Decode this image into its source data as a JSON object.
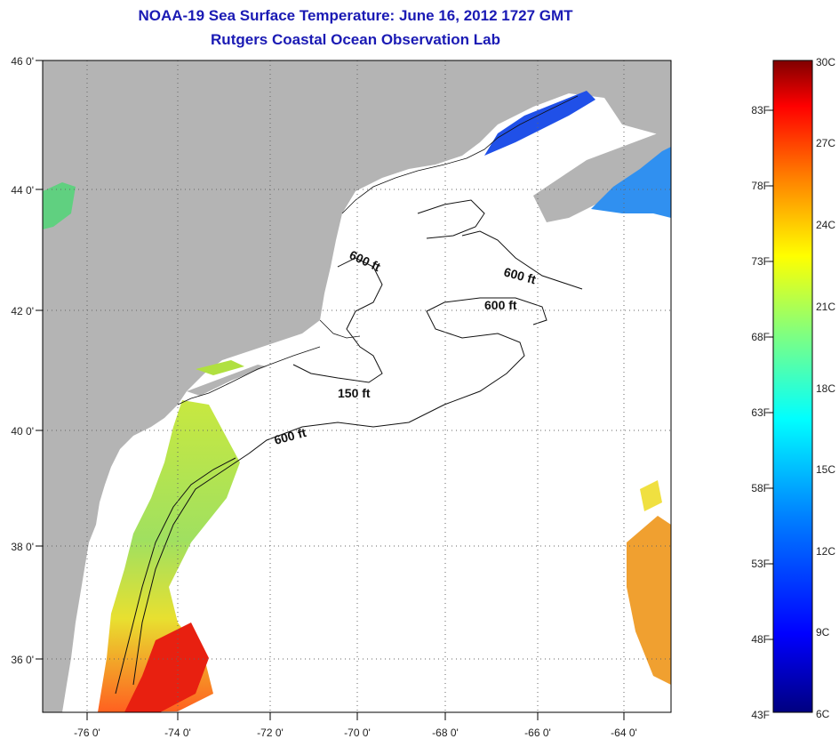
{
  "title": {
    "line1": "NOAA-19 Sea Surface Temperature:  June 16, 2012 1727 GMT",
    "line2": "Rutgers Coastal Ocean Observation Lab"
  },
  "map": {
    "lat_labels": [
      "46 0'",
      "44 0'",
      "42 0'",
      "40 0'",
      "38 0'",
      "36 0'"
    ],
    "lon_labels": [
      "-76 0'",
      "-74 0'",
      "-72 0'",
      "-70 0'",
      "-68 0'",
      "-66 0'",
      "-64 0'"
    ],
    "contour_labels": [
      "600 ft",
      "600 ft",
      "600 ft",
      "150 ft",
      "600 ft"
    ],
    "colors": {
      "land": "#b4b4b4",
      "ocean": "#ffffff"
    }
  },
  "colorbar": {
    "fahrenheit": [
      "83F",
      "78F",
      "73F",
      "68F",
      "63F",
      "58F",
      "53F",
      "48F",
      "43F"
    ],
    "celsius": [
      "30C",
      "27C",
      "24C",
      "21C",
      "18C",
      "15C",
      "12C",
      "9C",
      "6C"
    ],
    "colors": [
      "#800000",
      "#ff0000",
      "#ff8000",
      "#ffff00",
      "#80ff80",
      "#00ffff",
      "#0080ff",
      "#0000ff",
      "#000080"
    ]
  }
}
